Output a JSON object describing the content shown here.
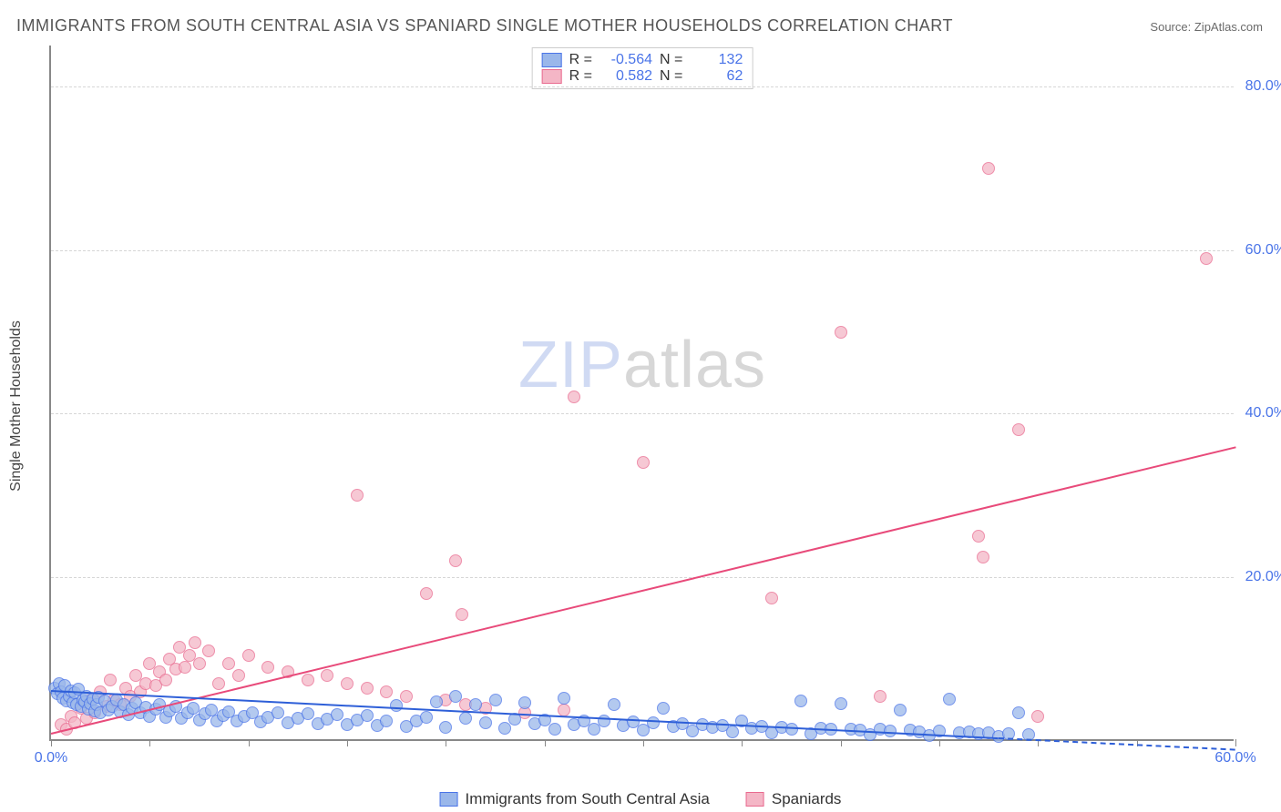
{
  "title": "IMMIGRANTS FROM SOUTH CENTRAL ASIA VS SPANIARD SINGLE MOTHER HOUSEHOLDS CORRELATION CHART",
  "source_label": "Source:",
  "source_value": "ZipAtlas.com",
  "y_axis_title": "Single Mother Households",
  "watermark_zip": "ZIP",
  "watermark_atlas": "atlas",
  "chart": {
    "type": "scatter",
    "background_color": "#ffffff",
    "grid_color": "#d6d6d6",
    "axis_color": "#888888",
    "xlim": [
      0,
      60
    ],
    "ylim": [
      0,
      85
    ],
    "xticks": [
      0,
      5,
      10,
      15,
      20,
      25,
      30,
      35,
      40,
      45,
      50,
      55,
      60
    ],
    "xtick_labels": {
      "0": "0.0%",
      "60": "60.0%"
    },
    "yticks": [
      20,
      40,
      60,
      80
    ],
    "ytick_labels": {
      "20": "20.0%",
      "40": "40.0%",
      "60": "60.0%",
      "80": "80.0%"
    },
    "label_color": "#4a74e8",
    "label_fontsize": 16,
    "title_fontsize": 18,
    "title_color": "#555555",
    "marker_radius": 7,
    "marker_border_width": 1.5,
    "marker_fill_opacity": 0.35
  },
  "series_blue": {
    "name": "Immigrants from South Central Asia",
    "short": "blue",
    "R": "-0.564",
    "N": "132",
    "fill": "#9ab7ea",
    "stroke": "#4a74e8",
    "line_color": "#2e5fd8",
    "trend": {
      "x1": 0,
      "y1": 6.2,
      "x2": 48,
      "y2": 0.4
    },
    "trend_ext": {
      "x1": 48,
      "y1": 0.4,
      "x2": 60,
      "y2": -1.0
    },
    "points": [
      [
        0.2,
        6.5
      ],
      [
        0.3,
        5.8
      ],
      [
        0.4,
        7.0
      ],
      [
        0.5,
        6.0
      ],
      [
        0.6,
        5.2
      ],
      [
        0.7,
        6.8
      ],
      [
        0.8,
        4.9
      ],
      [
        0.9,
        5.5
      ],
      [
        1.0,
        6.1
      ],
      [
        1.1,
        4.7
      ],
      [
        1.2,
        5.9
      ],
      [
        1.3,
        4.5
      ],
      [
        1.4,
        6.3
      ],
      [
        1.5,
        4.2
      ],
      [
        1.6,
        5.0
      ],
      [
        1.7,
        4.8
      ],
      [
        1.8,
        5.4
      ],
      [
        1.9,
        3.9
      ],
      [
        2.0,
        4.6
      ],
      [
        2.1,
        5.1
      ],
      [
        2.2,
        3.7
      ],
      [
        2.3,
        4.4
      ],
      [
        2.4,
        5.3
      ],
      [
        2.5,
        3.5
      ],
      [
        2.7,
        4.9
      ],
      [
        2.9,
        3.8
      ],
      [
        3.1,
        4.2
      ],
      [
        3.3,
        5.0
      ],
      [
        3.5,
        3.6
      ],
      [
        3.7,
        4.5
      ],
      [
        3.9,
        3.2
      ],
      [
        4.1,
        4.0
      ],
      [
        4.3,
        4.7
      ],
      [
        4.5,
        3.4
      ],
      [
        4.8,
        4.1
      ],
      [
        5.0,
        3.0
      ],
      [
        5.3,
        3.9
      ],
      [
        5.5,
        4.4
      ],
      [
        5.8,
        2.9
      ],
      [
        6.0,
        3.7
      ],
      [
        6.3,
        4.2
      ],
      [
        6.6,
        2.8
      ],
      [
        6.9,
        3.5
      ],
      [
        7.2,
        4.0
      ],
      [
        7.5,
        2.6
      ],
      [
        7.8,
        3.3
      ],
      [
        8.1,
        3.8
      ],
      [
        8.4,
        2.5
      ],
      [
        8.7,
        3.1
      ],
      [
        9.0,
        3.6
      ],
      [
        9.4,
        2.4
      ],
      [
        9.8,
        3.0
      ],
      [
        10.2,
        3.5
      ],
      [
        10.6,
        2.3
      ],
      [
        11.0,
        2.9
      ],
      [
        11.5,
        3.4
      ],
      [
        12.0,
        2.2
      ],
      [
        12.5,
        2.8
      ],
      [
        13.0,
        3.3
      ],
      [
        13.5,
        2.1
      ],
      [
        14.0,
        2.7
      ],
      [
        14.5,
        3.2
      ],
      [
        15.0,
        2.0
      ],
      [
        15.5,
        2.6
      ],
      [
        16.0,
        3.1
      ],
      [
        16.5,
        1.9
      ],
      [
        17.0,
        2.5
      ],
      [
        17.5,
        4.3
      ],
      [
        18.0,
        1.8
      ],
      [
        18.5,
        2.4
      ],
      [
        19.0,
        2.9
      ],
      [
        19.5,
        4.8
      ],
      [
        20.0,
        1.7
      ],
      [
        20.5,
        5.5
      ],
      [
        21.0,
        2.8
      ],
      [
        21.5,
        4.5
      ],
      [
        22.0,
        2.2
      ],
      [
        22.5,
        5.0
      ],
      [
        23.0,
        1.6
      ],
      [
        23.5,
        2.7
      ],
      [
        24.0,
        4.7
      ],
      [
        24.5,
        2.1
      ],
      [
        25.0,
        2.6
      ],
      [
        25.5,
        1.5
      ],
      [
        26.0,
        5.2
      ],
      [
        26.5,
        2.0
      ],
      [
        27.0,
        2.5
      ],
      [
        27.5,
        1.4
      ],
      [
        28.0,
        2.4
      ],
      [
        28.5,
        4.4
      ],
      [
        29.0,
        1.9
      ],
      [
        29.5,
        2.3
      ],
      [
        30.0,
        1.3
      ],
      [
        30.5,
        2.2
      ],
      [
        31.0,
        4.0
      ],
      [
        31.5,
        1.8
      ],
      [
        32.0,
        2.1
      ],
      [
        32.5,
        1.2
      ],
      [
        33.0,
        2.0
      ],
      [
        33.5,
        1.7
      ],
      [
        34.0,
        1.9
      ],
      [
        34.5,
        1.1
      ],
      [
        35.0,
        2.5
      ],
      [
        35.5,
        1.6
      ],
      [
        36.0,
        1.8
      ],
      [
        36.5,
        1.0
      ],
      [
        37.0,
        1.7
      ],
      [
        37.5,
        1.5
      ],
      [
        38.0,
        4.9
      ],
      [
        38.5,
        0.9
      ],
      [
        39.0,
        1.6
      ],
      [
        39.5,
        1.4
      ],
      [
        40.0,
        4.6
      ],
      [
        40.5,
        1.5
      ],
      [
        41.0,
        1.3
      ],
      [
        41.5,
        0.8
      ],
      [
        42.0,
        1.4
      ],
      [
        42.5,
        1.2
      ],
      [
        43.0,
        3.8
      ],
      [
        43.5,
        1.3
      ],
      [
        44.0,
        1.1
      ],
      [
        44.5,
        0.7
      ],
      [
        45.0,
        1.2
      ],
      [
        45.5,
        5.1
      ],
      [
        46.0,
        1.0
      ],
      [
        46.5,
        1.1
      ],
      [
        47.0,
        0.9
      ],
      [
        47.5,
        1.0
      ],
      [
        48.0,
        0.6
      ],
      [
        48.5,
        0.9
      ],
      [
        49.0,
        3.5
      ],
      [
        49.5,
        0.8
      ]
    ]
  },
  "series_pink": {
    "name": "Spaniards",
    "short": "pink",
    "R": "0.582",
    "N": "62",
    "fill": "#f4b6c6",
    "stroke": "#e96a8f",
    "line_color": "#e84a7a",
    "trend": {
      "x1": 0,
      "y1": 1.0,
      "x2": 60,
      "y2": 36.0
    },
    "points": [
      [
        0.5,
        2.0
      ],
      [
        0.8,
        1.5
      ],
      [
        1.0,
        3.0
      ],
      [
        1.2,
        2.2
      ],
      [
        1.5,
        4.0
      ],
      [
        1.8,
        2.8
      ],
      [
        2.0,
        5.0
      ],
      [
        2.2,
        3.5
      ],
      [
        2.5,
        6.0
      ],
      [
        2.8,
        4.2
      ],
      [
        3.0,
        7.5
      ],
      [
        3.2,
        5.0
      ],
      [
        3.5,
        4.5
      ],
      [
        3.8,
        6.5
      ],
      [
        4.0,
        5.5
      ],
      [
        4.3,
        8.0
      ],
      [
        4.5,
        6.0
      ],
      [
        4.8,
        7.0
      ],
      [
        5.0,
        9.5
      ],
      [
        5.3,
        6.8
      ],
      [
        5.5,
        8.5
      ],
      [
        5.8,
        7.5
      ],
      [
        6.0,
        10.0
      ],
      [
        6.3,
        8.8
      ],
      [
        6.5,
        11.5
      ],
      [
        6.8,
        9.0
      ],
      [
        7.0,
        10.5
      ],
      [
        7.3,
        12.0
      ],
      [
        7.5,
        9.5
      ],
      [
        8.0,
        11.0
      ],
      [
        8.5,
        7.0
      ],
      [
        9.0,
        9.5
      ],
      [
        9.5,
        8.0
      ],
      [
        10.0,
        10.5
      ],
      [
        11.0,
        9.0
      ],
      [
        12.0,
        8.5
      ],
      [
        13.0,
        7.5
      ],
      [
        14.0,
        8.0
      ],
      [
        15.0,
        7.0
      ],
      [
        16.0,
        6.5
      ],
      [
        17.0,
        6.0
      ],
      [
        18.0,
        5.5
      ],
      [
        15.5,
        30.0
      ],
      [
        19.0,
        18.0
      ],
      [
        20.0,
        5.0
      ],
      [
        20.5,
        22.0
      ],
      [
        20.8,
        15.5
      ],
      [
        21.0,
        4.5
      ],
      [
        22.0,
        4.0
      ],
      [
        24.0,
        3.5
      ],
      [
        26.0,
        3.8
      ],
      [
        26.5,
        42.0
      ],
      [
        30.0,
        34.0
      ],
      [
        36.5,
        17.5
      ],
      [
        40.0,
        50.0
      ],
      [
        42.0,
        5.5
      ],
      [
        47.0,
        25.0
      ],
      [
        47.2,
        22.5
      ],
      [
        47.5,
        70.0
      ],
      [
        49.0,
        38.0
      ],
      [
        50.0,
        3.0
      ],
      [
        58.5,
        59.0
      ]
    ]
  },
  "bottom_legend": {
    "item1": "Immigrants from South Central Asia",
    "item2": "Spaniards"
  },
  "stats_legend": {
    "r_label": "R =",
    "n_label": "N ="
  }
}
